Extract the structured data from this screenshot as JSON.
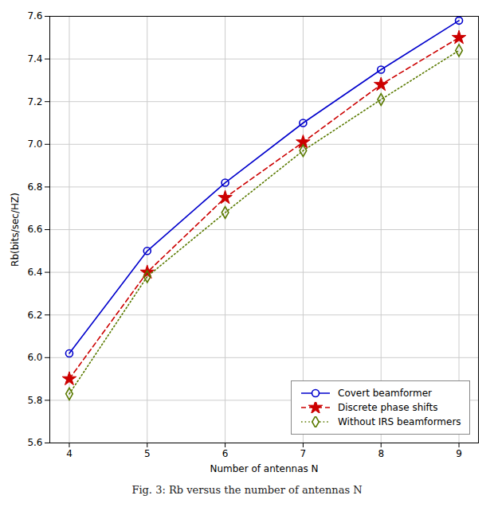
{
  "chart_data": {
    "type": "line",
    "caption": "Fig. 3: Rb versus the number of antennas N",
    "xlabel": "Number of antennas N",
    "ylabel": "Rb(bits/sec/HZ)",
    "x": [
      4,
      5,
      6,
      7,
      8,
      9
    ],
    "series": [
      {
        "name": "Covert beamformer",
        "color": "#0000cc",
        "marker": "circle",
        "line_style": "solid",
        "values": [
          6.02,
          6.5,
          6.82,
          7.1,
          7.35,
          7.58
        ]
      },
      {
        "name": "Discrete phase shifts",
        "color": "#cc0000",
        "marker": "star",
        "line_style": "dashed",
        "values": [
          5.9,
          6.4,
          6.75,
          7.01,
          7.28,
          7.5
        ]
      },
      {
        "name": "Without IRS beamformers",
        "color": "#5a7a00",
        "marker": "diamond",
        "line_style": "dotted",
        "values": [
          5.83,
          6.38,
          6.68,
          6.97,
          7.21,
          7.44
        ]
      }
    ],
    "xlim": [
      3.75,
      9.25
    ],
    "ylim": [
      5.6,
      7.6
    ],
    "xticks": [
      4,
      5,
      6,
      7,
      8,
      9
    ],
    "yticks": [
      5.6,
      5.8,
      {
        "value": 6.0,
        "label": "6.0"
      },
      6.2,
      6.4,
      6.6,
      6.8,
      {
        "value": 7.0,
        "label": "7.0"
      },
      7.2,
      7.4,
      7.6
    ],
    "grid": true,
    "legend": "lower right"
  }
}
